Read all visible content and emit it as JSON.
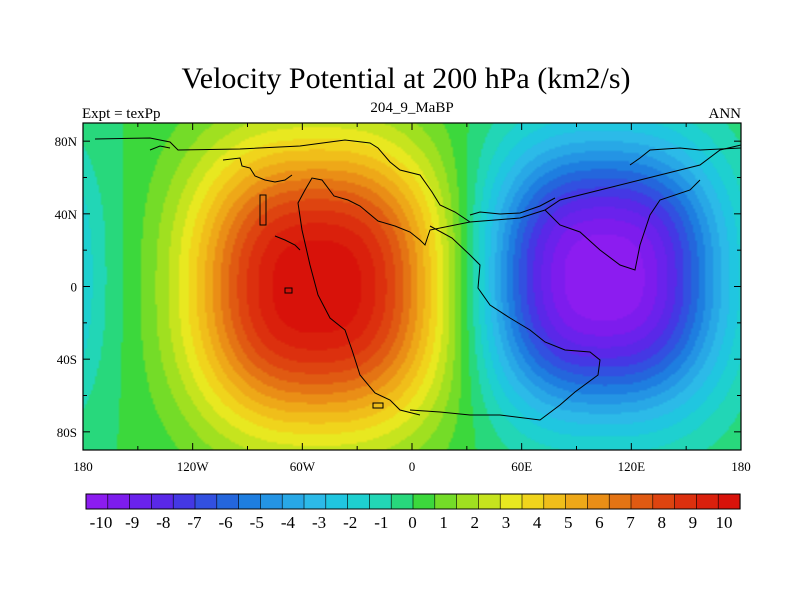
{
  "chart_data": {
    "type": "heatmap",
    "title": "Velocity Potential at 200 hPa (km2/s)",
    "left_label": "Expt = texPp",
    "center_label": "204_9_MaBP",
    "right_label": "ANN",
    "projection": "cylindrical equidistant, global",
    "x_ticks": [
      "180",
      "120W",
      "60W",
      "0",
      "60E",
      "120E",
      "180"
    ],
    "x_tick_values": [
      -180,
      -120,
      -60,
      0,
      60,
      120,
      180
    ],
    "y_ticks": [
      "80N",
      "40N",
      "0",
      "40S",
      "80S"
    ],
    "y_tick_values": [
      80,
      40,
      0,
      -40,
      -80
    ],
    "xlim": [
      -180,
      180
    ],
    "ylim": [
      -90,
      90
    ],
    "field_centers": {
      "positive_max": {
        "lon": -52,
        "lat": 0,
        "value": 10.5
      },
      "negative_min": {
        "lon": 105,
        "lat": 5,
        "value": -10.5
      }
    },
    "colorbar": {
      "labels": [
        "-10",
        "-9",
        "-8",
        "-7",
        "-6",
        "-5",
        "-4",
        "-3",
        "-2",
        "-1",
        "0",
        "1",
        "2",
        "3",
        "4",
        "5",
        "6",
        "7",
        "8",
        "9",
        "10"
      ],
      "levels": [
        -10,
        -9,
        -8,
        -7,
        -6,
        -5,
        -4,
        -3,
        -2,
        -1,
        0,
        1,
        2,
        3,
        4,
        5,
        6,
        7,
        8,
        9,
        10
      ],
      "colors": [
        "#8c1cf0",
        "#7d1ced",
        "#6a22ec",
        "#5a28e8",
        "#4438e4",
        "#3250e0",
        "#2466dc",
        "#1e7ee0",
        "#2494e4",
        "#28a8e6",
        "#2cbae8",
        "#20c6e0",
        "#1ed0d0",
        "#22d6b6",
        "#28d87c",
        "#3cd83c",
        "#74dc28",
        "#a0e020",
        "#c6e41e",
        "#e8e820",
        "#f0d41c",
        "#f0be1a",
        "#eea818",
        "#ea8e16",
        "#e47414",
        "#e05a12",
        "#de4410",
        "#dc300e",
        "#da200c",
        "#d8120a"
      ]
    }
  }
}
